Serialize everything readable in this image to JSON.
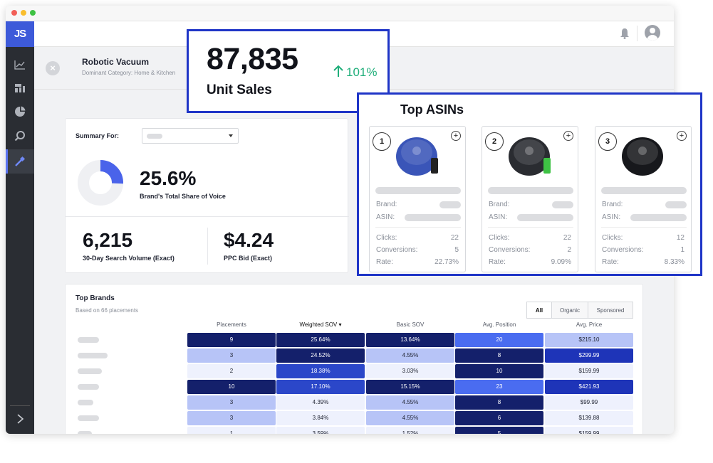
{
  "app": {
    "logo": "JS"
  },
  "header": {
    "product_title": "Robotic Vacuum",
    "product_subtitle": "Dominant Category: Home & Kitchen"
  },
  "summary": {
    "label": "Summary For:",
    "share_value": "25.6%",
    "share_caption": "Brand's Total Share of Voice",
    "share_fraction": 0.256,
    "search_volume": "6,215",
    "search_volume_caption": "30-Day Search Volume (Exact)",
    "ppc_bid": "$4.24",
    "ppc_bid_caption": "PPC Bid (Exact)"
  },
  "unit_sales": {
    "value": "87,835",
    "label": "Unit Sales",
    "change": "101%",
    "change_color": "#1fae7a"
  },
  "top_asins": {
    "title": "Top ASINs",
    "labels": {
      "brand": "Brand:",
      "asin": "ASIN:",
      "clicks": "Clicks:",
      "conversions": "Conversions:",
      "rate": "Rate:"
    },
    "items": [
      {
        "rank": "1",
        "clicks": "22",
        "conversions": "5",
        "rate": "22.73%",
        "color": "#3a55b8"
      },
      {
        "rank": "2",
        "clicks": "22",
        "conversions": "2",
        "rate": "9.09%",
        "color": "#2a2c31"
      },
      {
        "rank": "3",
        "clicks": "12",
        "conversions": "1",
        "rate": "8.33%",
        "color": "#17181c"
      }
    ]
  },
  "top_brands": {
    "title": "Top Brands",
    "subtitle": "Based on 66 placements",
    "filters": [
      "All",
      "Organic",
      "Sponsored"
    ],
    "active_filter": "All",
    "columns": [
      "Placements",
      "Weighted SOV",
      "Basic SOV",
      "Avg. Position",
      "Avg. Price"
    ],
    "sort_indicator": "▾",
    "rows": [
      {
        "placements": "9",
        "weighted_sov": "25.64%",
        "basic_sov": "13.64%",
        "avg_position": "20",
        "avg_price": "$215.10"
      },
      {
        "placements": "3",
        "weighted_sov": "24.52%",
        "basic_sov": "4.55%",
        "avg_position": "8",
        "avg_price": "$299.99"
      },
      {
        "placements": "2",
        "weighted_sov": "18.38%",
        "basic_sov": "3.03%",
        "avg_position": "10",
        "avg_price": "$159.99"
      },
      {
        "placements": "10",
        "weighted_sov": "17.10%",
        "basic_sov": "15.15%",
        "avg_position": "23",
        "avg_price": "$421.93"
      },
      {
        "placements": "3",
        "weighted_sov": "4.39%",
        "basic_sov": "4.55%",
        "avg_position": "8",
        "avg_price": "$99.99"
      },
      {
        "placements": "3",
        "weighted_sov": "3.84%",
        "basic_sov": "4.55%",
        "avg_position": "6",
        "avg_price": "$139.88"
      },
      {
        "placements": "1",
        "weighted_sov": "3.59%",
        "basic_sov": "1.52%",
        "avg_position": "5",
        "avg_price": "$159.99"
      }
    ],
    "row_colors": [
      [
        "#14206b",
        "#14206b",
        "#14206b",
        "#4a6cf0",
        "#b7c4f7"
      ],
      [
        "#b7c4f7",
        "#14206b",
        "#b7c4f7",
        "#14206b",
        "#1e34b8"
      ],
      [
        "#eef1fd",
        "#2b47c9",
        "#eef1fd",
        "#14206b",
        "#eef1fd"
      ],
      [
        "#14206b",
        "#2b47c9",
        "#14206b",
        "#4a6cf0",
        "#1e34b8"
      ],
      [
        "#b7c4f7",
        "#eef1fd",
        "#b7c4f7",
        "#14206b",
        "#eef1fd"
      ],
      [
        "#b7c4f7",
        "#eef1fd",
        "#b7c4f7",
        "#14206b",
        "#eef1fd"
      ],
      [
        "#eef1fd",
        "#eef1fd",
        "#eef1fd",
        "#14206b",
        "#eef1fd"
      ]
    ]
  },
  "colors": {
    "accent": "#3d5ad9",
    "highlight_border": "#1f35c7",
    "sidebar": "#2a2d33"
  }
}
